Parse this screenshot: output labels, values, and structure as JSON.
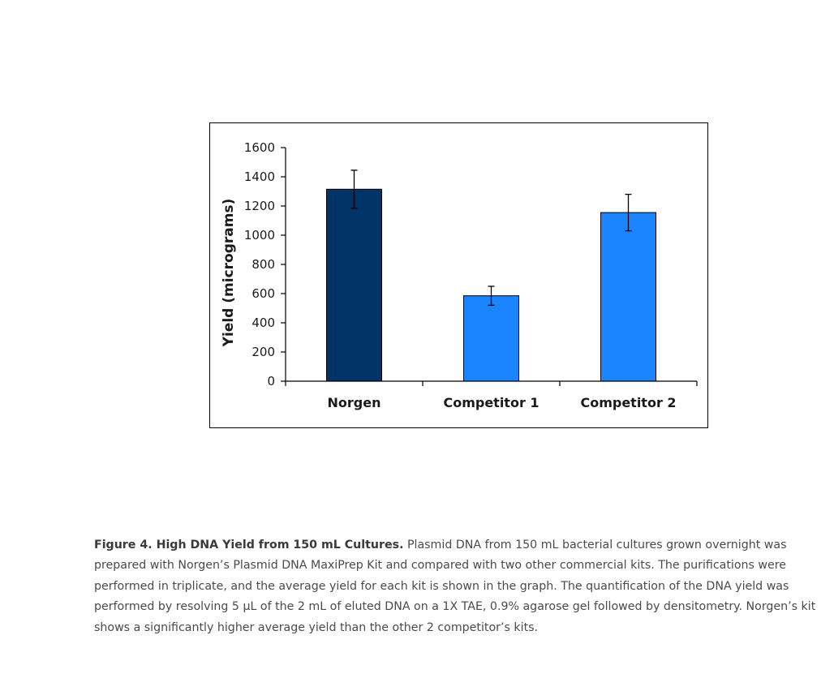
{
  "chart_data": {
    "type": "bar",
    "title": "",
    "xlabel": "",
    "ylabel": "Yield (micrograms)",
    "categories": [
      "Norgen",
      "Competitor 1",
      "Competitor 2"
    ],
    "values": [
      1315,
      585,
      1155
    ],
    "errors": [
      130,
      65,
      125
    ],
    "bar_colors": [
      "#003366",
      "#1a85ff",
      "#1a85ff"
    ],
    "ylim": [
      0,
      1600
    ],
    "yticks": [
      0,
      200,
      400,
      600,
      800,
      1000,
      1200,
      1400,
      1600
    ],
    "ytick_labels": [
      "0",
      "200",
      "400",
      "600",
      "800",
      "1000",
      "1200",
      "1400",
      "1600"
    ],
    "grid": false,
    "legend": "none"
  },
  "caption": {
    "title": "Figure 4. High DNA Yield from 150 mL Cultures.",
    "text": " Plasmid DNA from 150 mL bacterial cultures grown overnight was prepared with Norgen’s Plasmid DNA MaxiPrep Kit and compared with two other commercial kits. The purifications were performed in triplicate, and the average yield for each kit is shown in the graph. The quantification of the DNA yield was performed by resolving 5 μL of the 2 mL of eluted DNA on a 1X TAE, 0.9% agarose gel followed by densitometry. Norgen’s kit shows a significantly higher average yield than the other 2 competitor’s kits."
  }
}
